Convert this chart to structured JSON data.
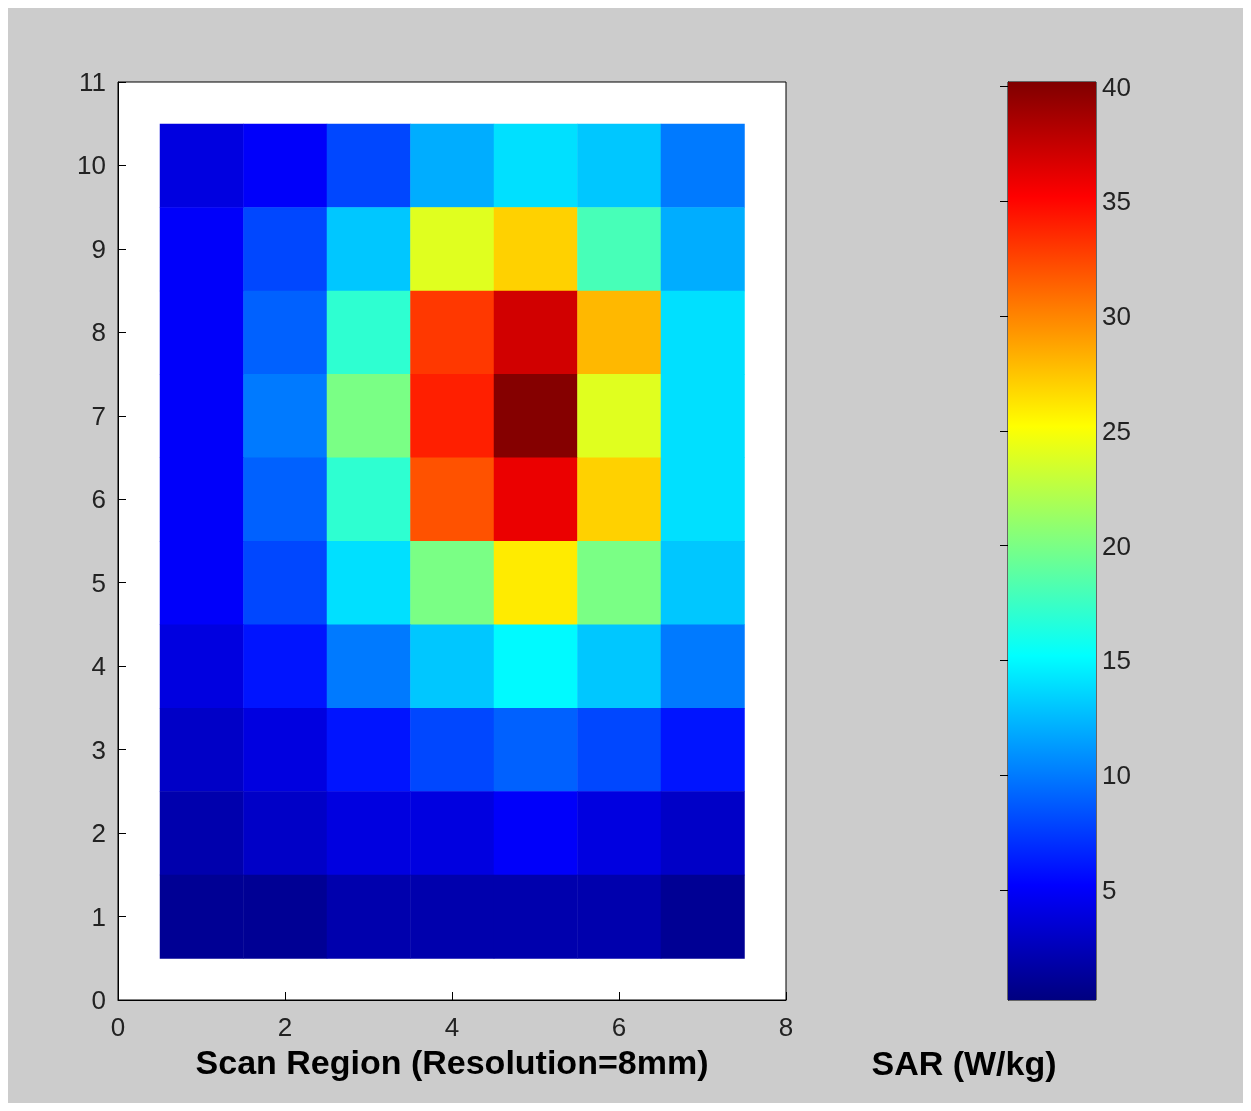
{
  "chart_data": {
    "type": "heatmap",
    "xlabel": "Scan Region (Resolution=8mm)",
    "clabel": "SAR (W/kg)",
    "x": [
      1,
      2,
      3,
      4,
      5,
      6,
      7
    ],
    "y": [
      10,
      9,
      8,
      7,
      6,
      5,
      4,
      3,
      2,
      1
    ],
    "cells": [
      [
        4,
        5,
        8,
        12,
        14,
        13,
        10
      ],
      [
        5,
        8,
        13,
        24,
        27,
        18,
        12
      ],
      [
        5,
        9,
        17,
        33,
        37,
        28,
        14
      ],
      [
        5,
        10,
        20,
        34,
        40,
        24,
        14
      ],
      [
        5,
        9,
        17,
        32,
        36,
        27,
        14
      ],
      [
        5,
        8,
        14,
        20,
        26,
        20,
        13
      ],
      [
        4,
        6,
        10,
        13,
        15,
        13,
        10
      ],
      [
        3,
        4,
        6,
        8,
        9,
        8,
        6
      ],
      [
        2,
        3,
        4,
        4,
        5,
        4,
        3
      ],
      [
        1,
        1,
        2,
        2,
        2,
        2,
        1
      ]
    ],
    "xlim": [
      0,
      8
    ],
    "xticks": [
      0,
      2,
      4,
      6,
      8
    ],
    "ylim": [
      0,
      11
    ],
    "yticks": [
      0,
      1,
      2,
      3,
      4,
      5,
      6,
      7,
      8,
      9,
      10,
      11
    ],
    "clim": [
      0.2,
      40.2
    ],
    "cticks": [
      5,
      10,
      15,
      20,
      25,
      30,
      35,
      40
    ]
  }
}
